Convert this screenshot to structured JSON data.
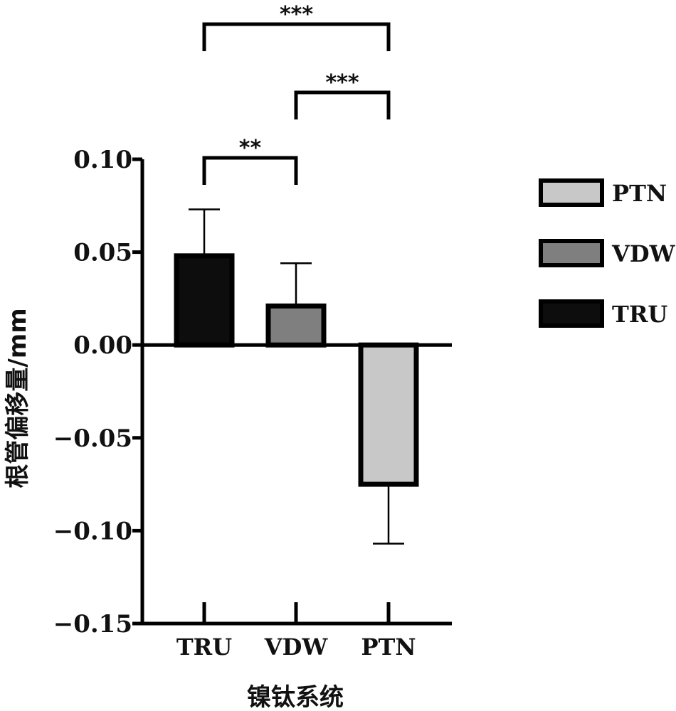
{
  "chart_data": {
    "type": "bar",
    "title": "",
    "xlabel": "镍钛系统",
    "ylabel": "根管偏移量/mm",
    "categories": [
      "TRU",
      "VDW",
      "PTN"
    ],
    "series": [
      {
        "values": [
          0.048,
          0.021,
          -0.075
        ],
        "errors": [
          0.025,
          0.023,
          0.032
        ],
        "colors": [
          "#0d0d0d",
          "#7f7f7f",
          "#c8c8c8"
        ]
      }
    ],
    "ylim": [
      -0.15,
      0.1
    ],
    "yticks": [
      0.1,
      0.05,
      0.0,
      -0.05,
      -0.1,
      -0.15
    ],
    "ytick_labels": [
      "0.10",
      "0.05",
      "0.00",
      "−0.05",
      "−0.10",
      "−0.15"
    ],
    "grid": false,
    "legend": {
      "position": "right",
      "entries": [
        {
          "label": "PTN",
          "color": "#c8c8c8"
        },
        {
          "label": "VDW",
          "color": "#7f7f7f"
        },
        {
          "label": "TRU",
          "color": "#0d0d0d"
        }
      ]
    },
    "significance": [
      {
        "from": "TRU",
        "to": "VDW",
        "label": "**"
      },
      {
        "from": "VDW",
        "to": "PTN",
        "label": "***"
      },
      {
        "from": "TRU",
        "to": "PTN",
        "label": "***"
      }
    ]
  }
}
